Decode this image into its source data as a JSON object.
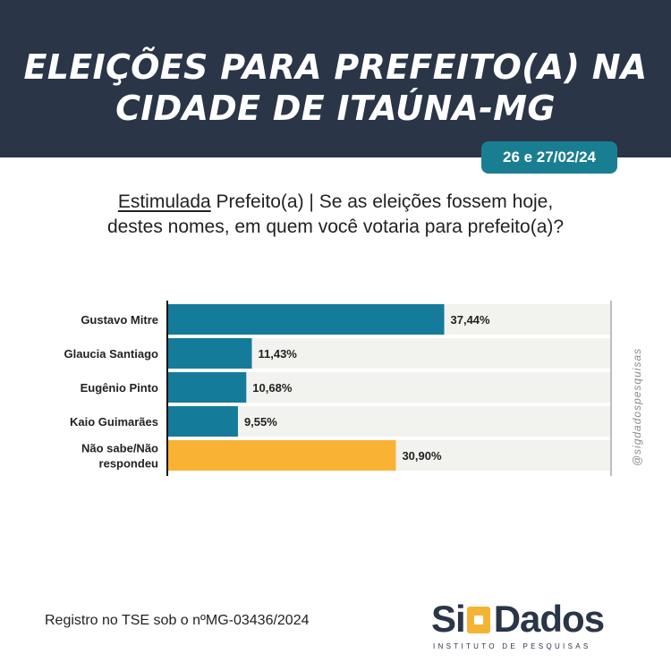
{
  "header": {
    "title_line1": "ELEIÇÕES PARA PREFEITO(A) NA",
    "title_line2": "CIDADE DE ITAÚNA-MG",
    "date": "26 e 27/02/24"
  },
  "question": {
    "kind": "Estimulada",
    "text_rest": " Prefeito(a) | Se as eleições fossem hoje,",
    "line2": "destes nomes, em quem você votaria para prefeito(a)?"
  },
  "chart_data": {
    "type": "bar",
    "orientation": "horizontal",
    "categories": [
      "Gustavo Mitre",
      "Glaucia Santiago",
      "Eugênio Pinto",
      "Kaio Guimarães",
      "Não sabe/Não respondeu"
    ],
    "category_lines": [
      [
        "Gustavo Mitre"
      ],
      [
        "Glaucia Santiago"
      ],
      [
        "Eugênio Pinto"
      ],
      [
        "Kaio Guimarães"
      ],
      [
        "Não sabe/Não",
        "respondeu"
      ]
    ],
    "values": [
      37.44,
      11.43,
      10.68,
      9.55,
      30.9
    ],
    "labels": [
      "37,44%",
      "11,43%",
      "10,68%",
      "9,55%",
      "30,90%"
    ],
    "xlim": [
      0,
      60
    ],
    "grid": false,
    "colors": [
      "#157b9a",
      "#157b9a",
      "#157b9a",
      "#157b9a",
      "#f9b233"
    ],
    "track_color": "#f2f2ee"
  },
  "watermark": "@sigdadospesquisas",
  "footer": {
    "registration": "Registro no TSE sob o nºMG-03436/2024"
  },
  "logo": {
    "text_left": "Si",
    "text_right": "Dados",
    "subtitle": "INSTITUTO DE PESQUISAS"
  }
}
